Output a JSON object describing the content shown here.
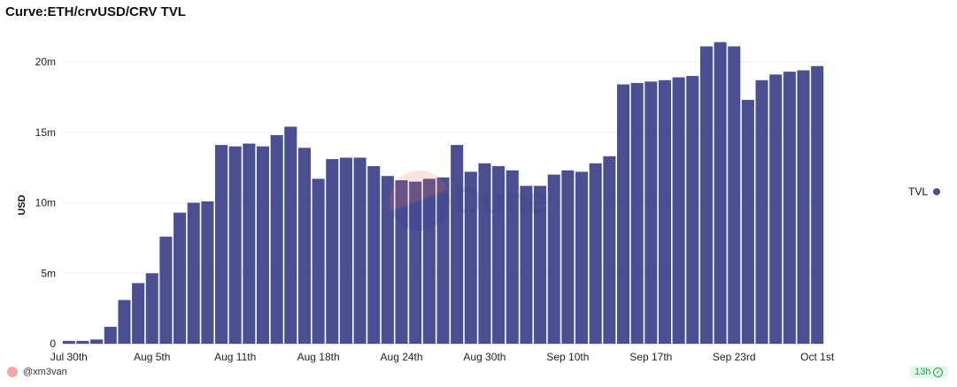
{
  "title": "Curve:ETH/crvUSD/CRV TVL",
  "author": "@xm3van",
  "freshness": "13h",
  "colors": {
    "bar": "#4c4e92",
    "grid": "#eeeeee"
  },
  "chart_data": {
    "type": "bar",
    "title": "Curve:ETH/crvUSD/CRV TVL",
    "ylabel": "USD",
    "xlabel": "",
    "ylim": [
      0,
      20500000
    ],
    "yticks": [
      {
        "value": 0,
        "label": "0"
      },
      {
        "value": 5000000,
        "label": "5m"
      },
      {
        "value": 10000000,
        "label": "10m"
      },
      {
        "value": 15000000,
        "label": "15m"
      },
      {
        "value": 20000000,
        "label": "20m"
      }
    ],
    "xticks": [
      {
        "index": 0,
        "label": "Jul 30th"
      },
      {
        "index": 6,
        "label": "Aug 5th"
      },
      {
        "index": 12,
        "label": "Aug 11th"
      },
      {
        "index": 18,
        "label": "Aug 18th"
      },
      {
        "index": 24,
        "label": "Aug 24th"
      },
      {
        "index": 30,
        "label": "Aug 30th"
      },
      {
        "index": 36,
        "label": "Sep 10th"
      },
      {
        "index": 42,
        "label": "Sep 17th"
      },
      {
        "index": 48,
        "label": "Sep 23rd"
      },
      {
        "index": 54,
        "label": "Oct 1st"
      }
    ],
    "legend": "right",
    "series": [
      {
        "name": "TVL",
        "values": [
          0.2,
          0.2,
          0.3,
          1.2,
          3.1,
          4.3,
          5.0,
          7.6,
          9.3,
          10.0,
          10.1,
          14.1,
          14.0,
          14.2,
          14.0,
          14.8,
          15.4,
          13.9,
          11.7,
          13.1,
          13.2,
          13.2,
          12.6,
          11.9,
          11.6,
          11.5,
          11.7,
          11.8,
          14.1,
          12.2,
          12.8,
          12.6,
          12.3,
          11.2,
          11.2,
          12.0,
          12.3,
          12.2,
          12.8,
          13.3,
          18.4,
          18.5,
          18.6,
          18.7,
          18.9,
          19.0,
          21.1,
          21.4,
          21.1,
          17.3,
          18.7,
          19.1,
          19.3,
          19.4,
          19.7
        ],
        "unit": "m"
      }
    ]
  }
}
